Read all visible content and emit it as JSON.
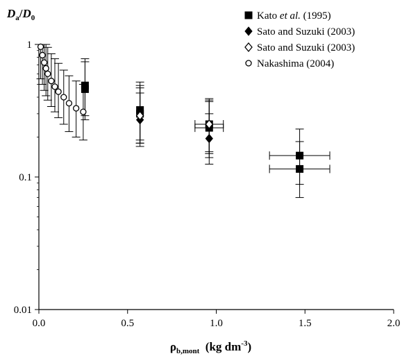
{
  "chart_data": {
    "type": "scatter",
    "ylabel": {
      "main": "D",
      "sub": "a",
      "sep": "/",
      "main2": "D",
      "sub2": "0"
    },
    "xlabel": {
      "main": "ρ",
      "sub": "b,mont",
      "unit": "(kg dm",
      "exp": "-3",
      "close": ")"
    },
    "xlim": [
      0,
      2.0
    ],
    "ylim": [
      0.01,
      1
    ],
    "yscale": "log",
    "x_ticks": [
      "0.0",
      "0.5",
      "1.0",
      "1.5",
      "2.0"
    ],
    "y_ticks": [
      "0.01",
      "0.1",
      "1"
    ],
    "grid": false,
    "legend_position": "top-right",
    "series": [
      {
        "name": "Kato et al. (1995)",
        "name_parts": [
          "Kato ",
          "et al.",
          " (1995)"
        ],
        "marker": "filled-square",
        "points": [
          {
            "x": 0.26,
            "y": 0.49,
            "yerr": [
              0.29,
              0.78
            ]
          },
          {
            "x": 0.26,
            "y": 0.46,
            "yerr": [
              0.27,
              0.74
            ]
          },
          {
            "x": 0.57,
            "y": 0.32,
            "yerr": [
              0.19,
              0.52
            ]
          },
          {
            "x": 0.57,
            "y": 0.3,
            "yerr": [
              0.18,
              0.49
            ]
          },
          {
            "x": 0.96,
            "y": 0.25,
            "yerr": [
              0.15,
              0.39
            ],
            "xerr": [
              0.88,
              1.04
            ]
          },
          {
            "x": 0.96,
            "y": 0.235,
            "yerr": [
              0.14,
              0.37
            ],
            "xerr": [
              0.88,
              1.04
            ]
          },
          {
            "x": 1.47,
            "y": 0.145,
            "yerr": [
              0.088,
              0.23
            ],
            "xerr": [
              1.3,
              1.64
            ]
          },
          {
            "x": 1.47,
            "y": 0.115,
            "yerr": [
              0.07,
              0.185
            ],
            "xerr": [
              1.3,
              1.64
            ]
          }
        ]
      },
      {
        "name": "Sato and Suzuki (2003)",
        "marker": "filled-diamond",
        "points": [
          {
            "x": 0.57,
            "y": 0.27,
            "yerr": [
              0.17,
              0.43
            ]
          },
          {
            "x": 0.96,
            "y": 0.195,
            "yerr": [
              0.125,
              0.3
            ]
          }
        ]
      },
      {
        "name": "Sato and Suzuki (2003)",
        "marker": "open-diamond",
        "points": [
          {
            "x": 0.57,
            "y": 0.29,
            "yerr": [
              0.18,
              0.47
            ]
          },
          {
            "x": 0.96,
            "y": 0.25,
            "yerr": [
              0.155,
              0.38
            ]
          }
        ]
      },
      {
        "name": "Nakashima (2004)",
        "marker": "open-circle",
        "points": [
          {
            "x": 0.01,
            "y": 0.96,
            "yerr": [
              0.55,
              1.0
            ]
          },
          {
            "x": 0.02,
            "y": 0.83,
            "yerr": [
              0.5,
              1.0
            ]
          },
          {
            "x": 0.03,
            "y": 0.73,
            "yerr": [
              0.45,
              1.0
            ]
          },
          {
            "x": 0.04,
            "y": 0.66,
            "yerr": [
              0.41,
              1.0
            ]
          },
          {
            "x": 0.05,
            "y": 0.6,
            "yerr": [
              0.38,
              0.95
            ]
          },
          {
            "x": 0.07,
            "y": 0.53,
            "yerr": [
              0.34,
              0.85
            ]
          },
          {
            "x": 0.09,
            "y": 0.48,
            "yerr": [
              0.31,
              0.78
            ]
          },
          {
            "x": 0.11,
            "y": 0.44,
            "yerr": [
              0.28,
              0.72
            ]
          },
          {
            "x": 0.14,
            "y": 0.4,
            "yerr": [
              0.25,
              0.64
            ]
          },
          {
            "x": 0.17,
            "y": 0.36,
            "yerr": [
              0.22,
              0.58
            ]
          },
          {
            "x": 0.21,
            "y": 0.33,
            "yerr": [
              0.2,
              0.53
            ]
          },
          {
            "x": 0.25,
            "y": 0.31,
            "yerr": [
              0.19,
              0.5
            ]
          }
        ]
      }
    ]
  }
}
